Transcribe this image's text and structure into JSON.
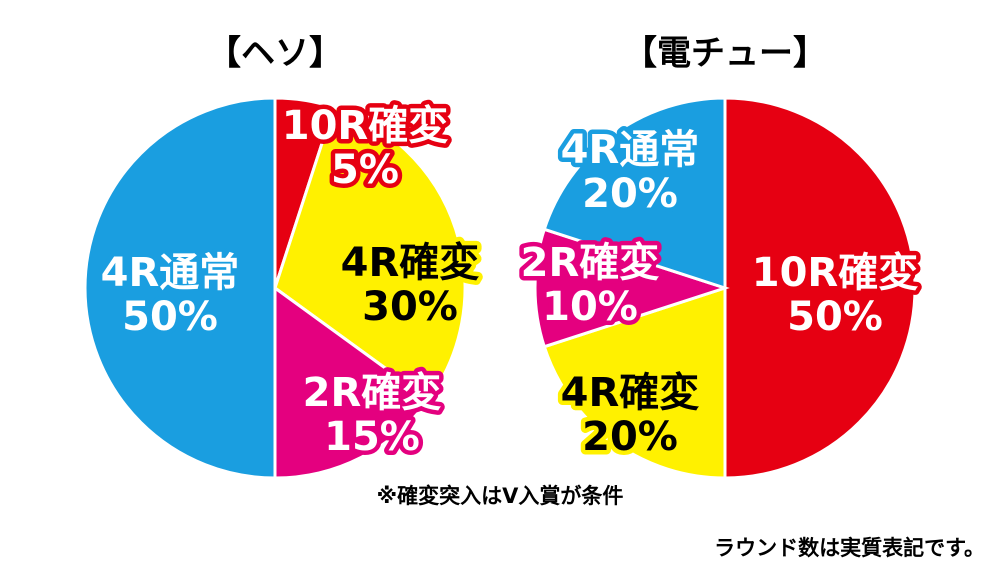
{
  "chart_data": [
    {
      "type": "pie",
      "title": "【ヘソ】",
      "categories": [
        "10R確変",
        "4R確変",
        "2R確変",
        "4R通常"
      ],
      "values": [
        5,
        30,
        15,
        50
      ],
      "value_labels": [
        "5%",
        "30%",
        "15%",
        "50%"
      ],
      "colors": [
        "#e60012",
        "#fff100",
        "#e4007f",
        "#1a9ee0"
      ]
    },
    {
      "type": "pie",
      "title": "【電チュー】",
      "categories": [
        "10R確変",
        "4R確変",
        "2R確変",
        "4R通常"
      ],
      "values": [
        50,
        20,
        10,
        20
      ],
      "value_labels": [
        "50%",
        "20%",
        "10%",
        "20%"
      ],
      "colors": [
        "#e60012",
        "#fff100",
        "#e4007f",
        "#1a9ee0"
      ]
    }
  ],
  "notes": [
    "※確変突入はV入賞が条件",
    "ラウンド数は実質表記です。"
  ]
}
